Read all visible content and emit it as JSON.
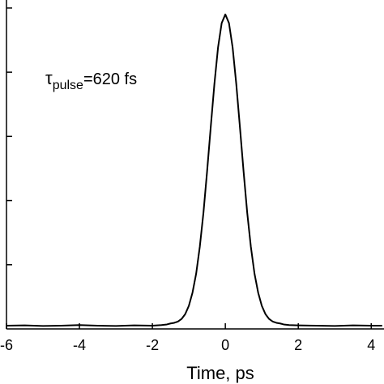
{
  "chart_data": {
    "type": "line",
    "x_label": "Time, ps",
    "annotation": {
      "symbol": "τ",
      "subscript": "pulse",
      "text": "=620 fs"
    },
    "x": [
      -6,
      -5.5,
      -5,
      -4.5,
      -4,
      -3.5,
      -3,
      -2.5,
      -2,
      -1.75,
      -1.6,
      -1.5,
      -1.4,
      -1.3,
      -1.2,
      -1.1,
      -1.0,
      -0.9,
      -0.8,
      -0.7,
      -0.6,
      -0.5,
      -0.4,
      -0.3,
      -0.2,
      -0.1,
      0,
      0.1,
      0.2,
      0.3,
      0.4,
      0.5,
      0.6,
      0.7,
      0.8,
      0.9,
      1.0,
      1.1,
      1.2,
      1.3,
      1.4,
      1.5,
      1.6,
      1.75,
      2,
      2.5,
      3,
      3.5,
      4,
      4.3
    ],
    "series": [
      {
        "color": "#000000",
        "values": [
          0.01,
          0.011,
          0.009,
          0.01,
          0.012,
          0.01,
          0.009,
          0.011,
          0.01,
          0.012,
          0.014,
          0.017,
          0.019,
          0.023,
          0.031,
          0.046,
          0.072,
          0.113,
          0.172,
          0.256,
          0.362,
          0.491,
          0.629,
          0.763,
          0.877,
          0.953,
          0.98,
          0.953,
          0.877,
          0.763,
          0.629,
          0.491,
          0.362,
          0.256,
          0.172,
          0.113,
          0.072,
          0.046,
          0.031,
          0.023,
          0.019,
          0.017,
          0.014,
          0.012,
          0.011,
          0.01,
          0.009,
          0.011,
          0.01,
          0.01
        ]
      }
    ],
    "xlim": [
      -6,
      4.35
    ],
    "xticks": [
      -6,
      -4,
      -2,
      0,
      2,
      4
    ],
    "ylim": [
      0,
      1.025
    ],
    "yticks": [
      0.2,
      0.4,
      0.6,
      0.8,
      1.0
    ]
  }
}
